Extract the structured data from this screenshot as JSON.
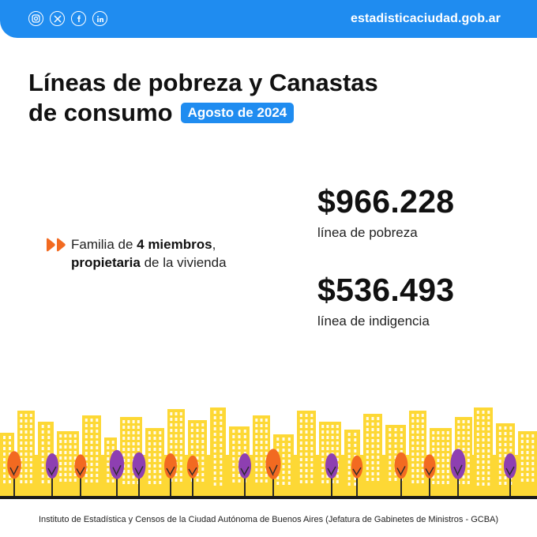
{
  "header": {
    "social_icons": [
      "instagram-icon",
      "x-icon",
      "facebook-icon",
      "linkedin-icon"
    ],
    "site": "estadisticaciudad.gob.ar",
    "accent_color": "#1f8cf0"
  },
  "title": {
    "line1": "Líneas de pobreza y Canastas",
    "line2": "de consumo",
    "badge": "Agosto de 2024"
  },
  "family": {
    "part1": "Familia de ",
    "bold1": "4 miembros",
    "part2": ",",
    "bold2": "propietaria",
    "part3": " de la vivienda",
    "arrow_color": "#f26a21"
  },
  "stats": [
    {
      "value": "$966.228",
      "label": "línea de pobreza"
    },
    {
      "value": "$536.493",
      "label": "línea de indigencia"
    }
  ],
  "illustration": {
    "building_color": "#fdd835",
    "tree_colors": [
      "#f26a21",
      "#8e3fb1"
    ]
  },
  "footer": {
    "text": "Instituto de Estadística y Censos de la Ciudad Autónoma de Buenos Aires (Jefatura de Gabinetes de Ministros - GCBA)"
  }
}
